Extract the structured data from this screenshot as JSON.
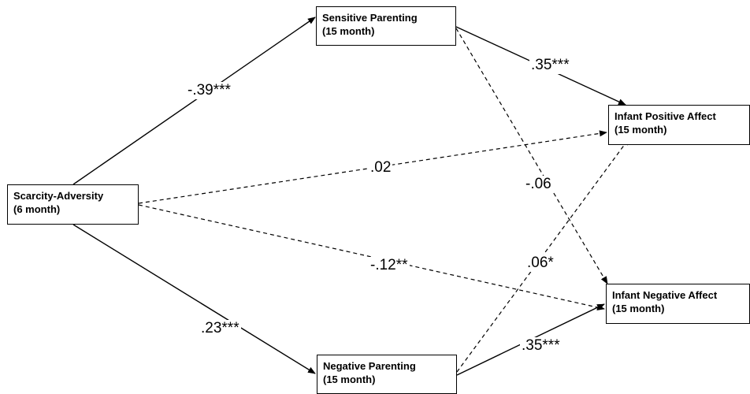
{
  "nodes": {
    "sensitive_parenting": {
      "line1": "Sensitive Parenting",
      "line2": "(15 month)"
    },
    "scarcity_adversity": {
      "line1": "Scarcity-Adversity",
      "line2": "(6 month)"
    },
    "negative_parenting": {
      "line1": "Negative Parenting",
      "line2": "(15 month)"
    },
    "infant_positive_affect": {
      "line1": "Infant Positive Affect",
      "line2": "(15 month)"
    },
    "infant_negative_affect": {
      "line1": "Infant Negative Affect",
      "line2": "(15 month)"
    }
  },
  "paths": {
    "scarcity_to_sensitive": {
      "coef": "-.39***",
      "style": "solid"
    },
    "scarcity_to_negative": {
      "coef": ".23***",
      "style": "solid"
    },
    "scarcity_to_positive_affect": {
      "coef": ".02",
      "style": "dashed"
    },
    "scarcity_to_negative_affect": {
      "coef": "-.12**",
      "style": "dashed"
    },
    "sensitive_to_positive_affect": {
      "coef": ".35***",
      "style": "solid"
    },
    "sensitive_to_negative_affect": {
      "coef": "-.06",
      "style": "dashed"
    },
    "negative_to_positive_affect": {
      "coef": ".06*",
      "style": "dashed"
    },
    "negative_to_negative_affect": {
      "coef": ".35***",
      "style": "solid"
    }
  },
  "colors": {
    "line": "#000000",
    "background": "#ffffff"
  }
}
